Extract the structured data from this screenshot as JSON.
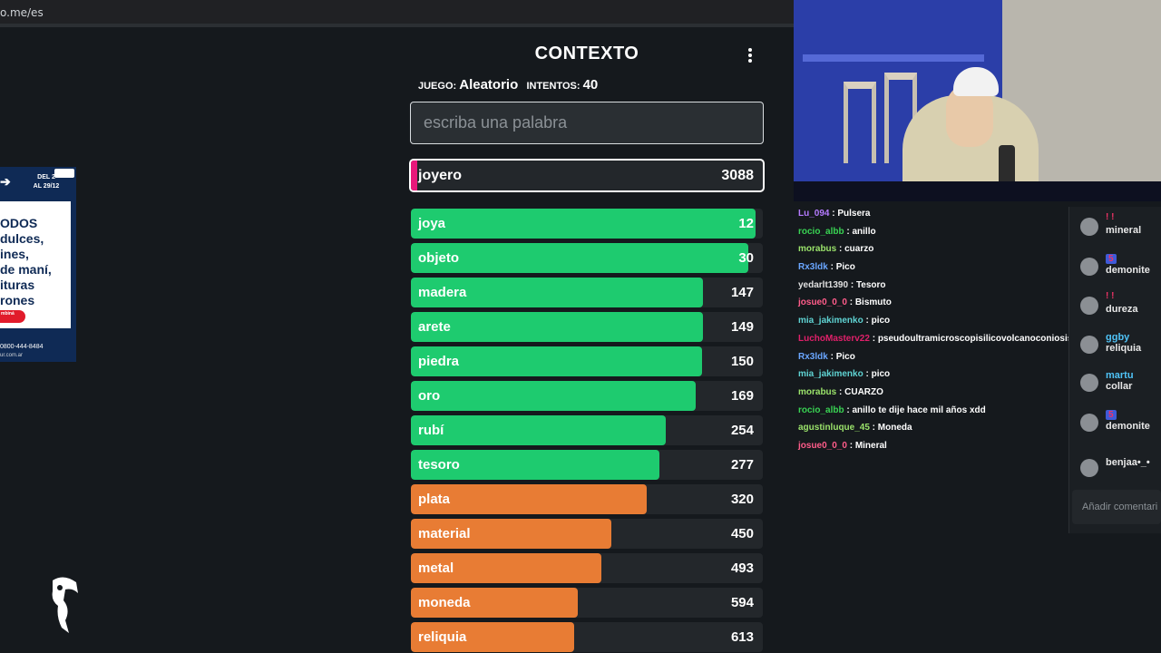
{
  "browser": {
    "url": "o.me/es"
  },
  "ad": {
    "dates_line1": "DEL 2",
    "dates_line2": "AL 29/12",
    "lines": [
      "ODOS",
      "dulces,",
      "ines,",
      "de maní,",
      "ituras",
      "rones"
    ],
    "badge": "mbiná",
    "phone": "0800-444-8484",
    "web": "ur.com.ar"
  },
  "game": {
    "title": "CONTEXTO",
    "game_label": "JUEGO:",
    "game_value": "Aleatorio",
    "attempts_label": "INTENTOS:",
    "attempts_value": "40",
    "search_placeholder": "escriba una palabra",
    "current": {
      "word": "joyero",
      "rank": "3088"
    },
    "guesses": [
      {
        "word": "joya",
        "rank": "12",
        "fill": 0.98,
        "color": "#1ecb6f"
      },
      {
        "word": "objeto",
        "rank": "30",
        "fill": 0.96,
        "color": "#1ecb6f"
      },
      {
        "word": "madera",
        "rank": "147",
        "fill": 0.83,
        "color": "#1ecb6f"
      },
      {
        "word": "arete",
        "rank": "149",
        "fill": 0.829,
        "color": "#1ecb6f"
      },
      {
        "word": "piedra",
        "rank": "150",
        "fill": 0.828,
        "color": "#1ecb6f"
      },
      {
        "word": "oro",
        "rank": "169",
        "fill": 0.81,
        "color": "#1ecb6f"
      },
      {
        "word": "rubí",
        "rank": "254",
        "fill": 0.725,
        "color": "#1ecb6f"
      },
      {
        "word": "tesoro",
        "rank": "277",
        "fill": 0.705,
        "color": "#1ecb6f"
      },
      {
        "word": "plata",
        "rank": "320",
        "fill": 0.67,
        "color": "#e87c34"
      },
      {
        "word": "material",
        "rank": "450",
        "fill": 0.57,
        "color": "#e87c34"
      },
      {
        "word": "metal",
        "rank": "493",
        "fill": 0.54,
        "color": "#e87c34"
      },
      {
        "word": "moneda",
        "rank": "594",
        "fill": 0.475,
        "color": "#e87c34"
      },
      {
        "word": "reliquia",
        "rank": "613",
        "fill": 0.465,
        "color": "#e87c34"
      }
    ]
  },
  "chat": [
    {
      "user": "Lu_094",
      "color": "#b57bff",
      "text": "Pulsera"
    },
    {
      "user": "rocio_albb",
      "color": "#39d353",
      "text": "anillo"
    },
    {
      "user": "morabus",
      "color": "#9be36b",
      "text": "cuarzo"
    },
    {
      "user": "Rx3ldk",
      "color": "#6aa6ff",
      "text": "Pico"
    },
    {
      "user": "yedarlt1390",
      "color": "#e0e0e0",
      "text": "Tesoro"
    },
    {
      "user": "josue0_0_0",
      "color": "#ff5c8a",
      "text": "Bismuto"
    },
    {
      "user": "mia_jakimenko",
      "color": "#5fd3d3",
      "text": "pico"
    },
    {
      "user": "LuchoMasterv22",
      "color": "#e0206a",
      "text": "pseudoultramicroscopisilicovolcanoconiosis"
    },
    {
      "user": "Rx3ldk",
      "color": "#6aa6ff",
      "text": "Pico"
    },
    {
      "user": "mia_jakimenko",
      "color": "#5fd3d3",
      "text": "pico"
    },
    {
      "user": "morabus",
      "color": "#9be36b",
      "text": "CUARZO"
    },
    {
      "user": "rocio_albb",
      "color": "#39d353",
      "text": "anillo te dije hace mil años xdd"
    },
    {
      "user": "agustinluque_45",
      "color": "#9be36b",
      "text": "Moneda"
    },
    {
      "user": "josue0_0_0",
      "color": "#ff5c8a",
      "text": "Mineral"
    }
  ],
  "comments": {
    "items": [
      {
        "header": "! !",
        "name": "",
        "level": "",
        "text": "mineral"
      },
      {
        "header": "",
        "name": "",
        "level": "5",
        "text": "demonite"
      },
      {
        "header": "! !",
        "name": "",
        "level": "",
        "text": "dureza"
      },
      {
        "header": "",
        "name": "ggby",
        "level": "",
        "text": "reliquia"
      },
      {
        "header": "",
        "name": "martu",
        "level": "",
        "text": "collar"
      },
      {
        "header": "",
        "name": "",
        "level": "5",
        "text": "demonite"
      },
      {
        "header": "",
        "name": "",
        "level": "",
        "text": "benjaa•_•"
      }
    ],
    "add_placeholder": "Añadir comentari"
  }
}
